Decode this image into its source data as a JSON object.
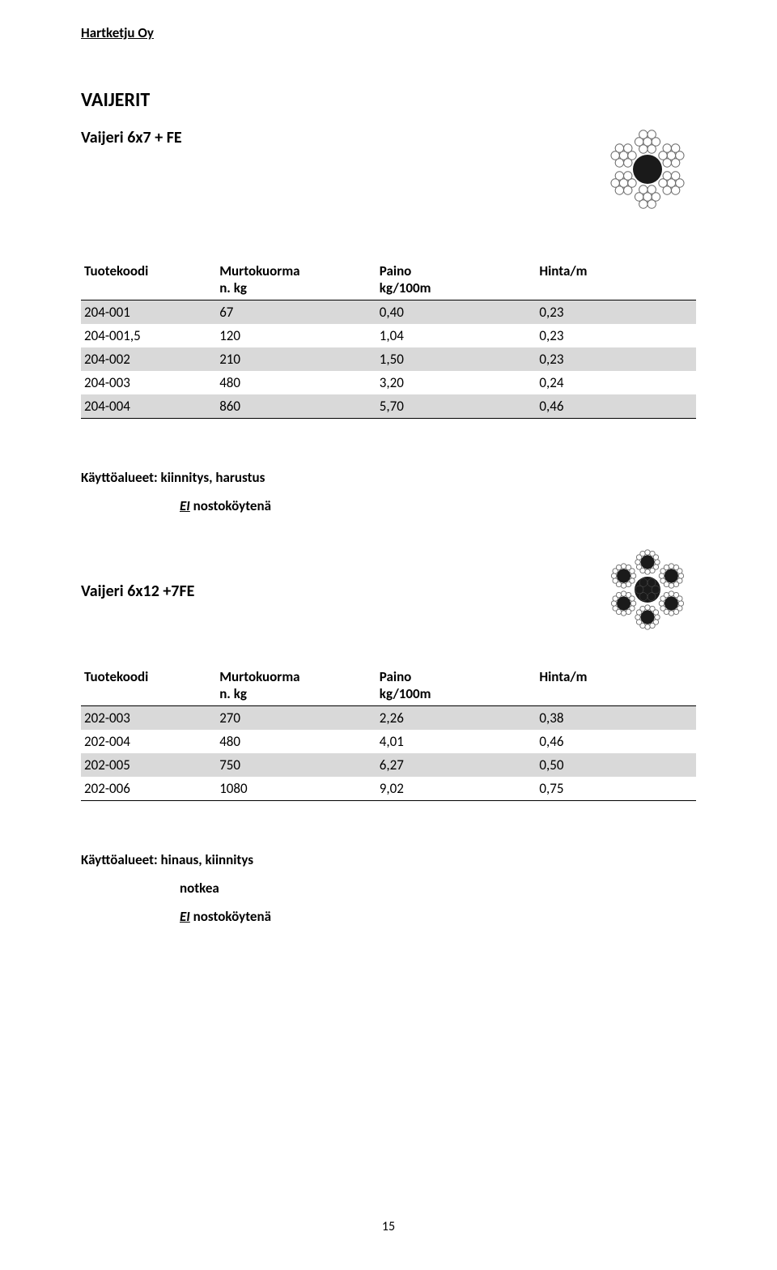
{
  "company": "Hartketju Oy",
  "page_number": "15",
  "mainTitle": "VAIJERIT",
  "section1": {
    "subtitle": "Vaijeri 6x7 + FE",
    "columns": [
      {
        "line1": "Tuotekoodi",
        "line2": ""
      },
      {
        "line1": "Murtokuorma",
        "line2": "n. kg"
      },
      {
        "line1": "Paino",
        "line2": "kg/100m"
      },
      {
        "line1": "Hinta/m",
        "line2": ""
      }
    ],
    "rows": [
      {
        "cells": [
          "204-001",
          "67",
          "0,40",
          "0,23"
        ],
        "cls": "gray"
      },
      {
        "cells": [
          "204-001,5",
          "120",
          "1,04",
          "0,23"
        ],
        "cls": "white"
      },
      {
        "cells": [
          "204-002",
          "210",
          "1,50",
          "0,23"
        ],
        "cls": "gray"
      },
      {
        "cells": [
          "204-003",
          "480",
          "3,20",
          "0,24"
        ],
        "cls": "white"
      },
      {
        "cells": [
          "204-004",
          "860",
          "5,70",
          "0,46"
        ],
        "cls": "gray"
      }
    ],
    "uses": "Käyttöalueet: kiinnitys, harustus",
    "note_underline": "EI",
    "note_rest": " nostoköytenä"
  },
  "section2": {
    "subtitle": "Vaijeri 6x12 +7FE",
    "columns": [
      {
        "line1": "Tuotekoodi",
        "line2": ""
      },
      {
        "line1": "Murtokuorma",
        "line2": "n. kg"
      },
      {
        "line1": "Paino",
        "line2": "kg/100m"
      },
      {
        "line1": "Hinta/m",
        "line2": ""
      }
    ],
    "rows": [
      {
        "cells": [
          "202-003",
          "270",
          "2,26",
          "0,38"
        ],
        "cls": "gray"
      },
      {
        "cells": [
          "202-004",
          "480",
          "4,01",
          "0,46"
        ],
        "cls": "white"
      },
      {
        "cells": [
          "202-005",
          "750",
          "6,27",
          "0,50"
        ],
        "cls": "gray"
      },
      {
        "cells": [
          "202-006",
          "1080",
          "9,02",
          "0,75"
        ],
        "cls": "white"
      }
    ],
    "uses": "Käyttöalueet: hinaus, kiinnitys",
    "note1": "notkea",
    "note2_underline": "EI",
    "note2_rest": " nostoköytenä"
  },
  "diagram1": {
    "strands": 6,
    "wires_per_strand": 7,
    "outer_color": "#6b6b6b",
    "bg_color": "#ffffff",
    "core_color": "#1a1a1a",
    "strand_bg": "#cccccc"
  },
  "diagram2": {
    "strands": 6,
    "outer_wires": 12,
    "bg_color": "#ffffff",
    "outer_color": "#6b6b6b",
    "core_color": "#1a1a1a"
  }
}
